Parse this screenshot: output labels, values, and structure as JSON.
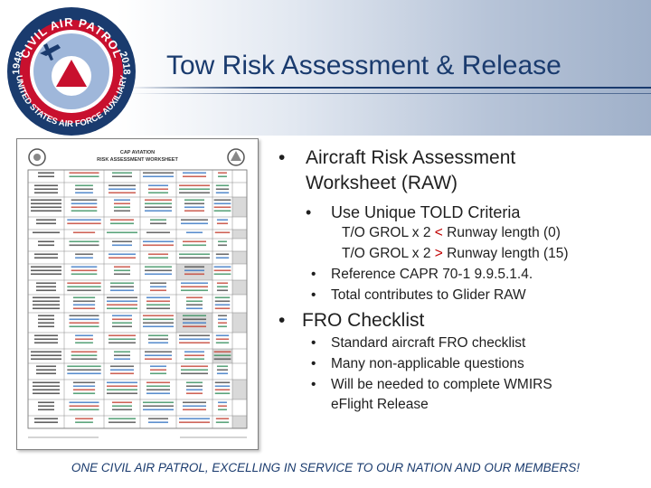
{
  "slide": {
    "title": "Tow Risk Assessment & Release",
    "seal": {
      "top_text": "CIVIL AIR PATROL",
      "left_year": "1948",
      "right_year": "2018",
      "bottom_text": "UNITED STATES AIR FORCE AUXILIARY"
    },
    "document_thumbnail": {
      "heading_line1": "CAP AVIATION",
      "heading_line2": "RISK ASSESSMENT WORKSHEET"
    },
    "bullets": [
      {
        "text_line1": "Aircraft Risk Assessment",
        "text_line2": "Worksheet (RAW)",
        "sub": [
          {
            "text": "Use Unique TOLD Criteria",
            "details": [
              {
                "pre": "T/O GROL x 2 ",
                "op": "<",
                "post": " Runway length (0)"
              },
              {
                "pre": "T/O GROL x 2 ",
                "op": ">",
                "post": " Runway length (15)"
              },
              {
                "text": "Reference CAPR 70-1 9.9.5.1.4."
              },
              {
                "text": "Total contributes to Glider RAW"
              }
            ]
          }
        ]
      },
      {
        "text": "FRO Checklist",
        "sub": [
          {
            "text": "Standard aircraft FRO checklist"
          },
          {
            "text": "Many non-applicable questions"
          },
          {
            "text_line1": "Will be needed to complete WMIRS",
            "text_line2": "eFlight Release"
          }
        ]
      }
    ],
    "footer": "ONE CIVIL AIR PATROL, EXCELLING IN SERVICE TO OUR NATION AND OUR MEMBERS!"
  },
  "colors": {
    "navy": "#1a3b6e",
    "red": "#c00000",
    "text": "#1f1f1f"
  }
}
